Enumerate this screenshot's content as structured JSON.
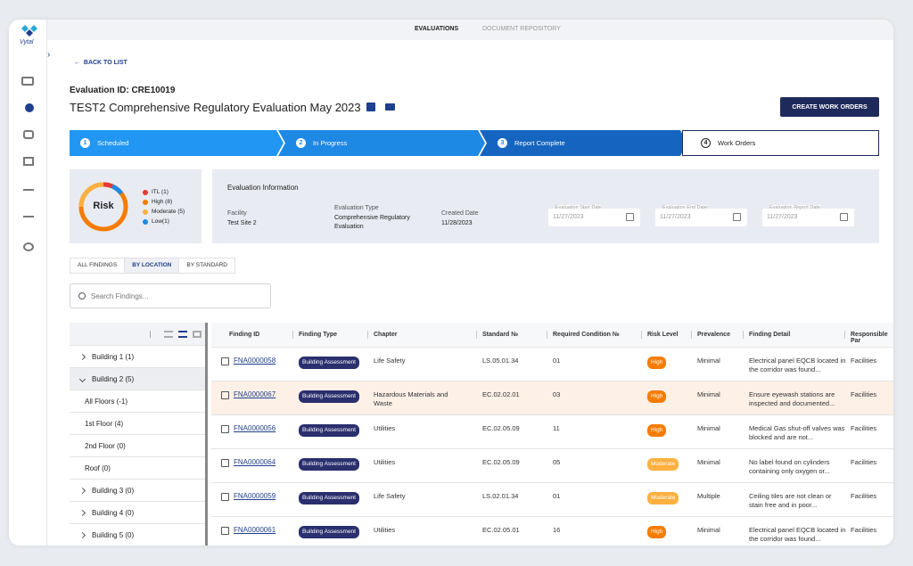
{
  "logo": "Vytal",
  "tabs": [
    "EVALUATIONS",
    "DOCUMENT REPOSITORY"
  ],
  "back": "BACK TO LIST",
  "evaluation_id": "Evaluation ID: CRE10019",
  "title": "TEST2 Comprehensive Regulatory Evaluation May 2023",
  "button": "CREATE WORK ORDERS",
  "steps": [
    {
      "number": 1,
      "label": "Scheduled"
    },
    {
      "number": 2,
      "label": "In Progress"
    },
    {
      "number": 3,
      "label": "Report Complete"
    },
    {
      "number": 4,
      "label": "Work Orders"
    }
  ],
  "risk": {
    "label": "Risk",
    "legend": [
      "ITL (1)",
      "High (8)",
      "Moderate (5)",
      "Low(1)"
    ]
  },
  "info": {
    "heading": "Evaluation Information",
    "fields": [
      {
        "label": "Facility",
        "value": "Test Site 2"
      },
      {
        "label": "Evaluation Type",
        "value": "Comprehensive Regulatory Evaluation"
      },
      {
        "label": "Created Date",
        "value": "11/28/2023"
      }
    ],
    "dates": [
      {
        "label": "Evaluation Start Date",
        "value": "11/27/2023"
      },
      {
        "label": "Evaluation End Date",
        "value": "11/27/2023"
      },
      {
        "label": "Evaluation Report Date",
        "value": "11/27/2023"
      }
    ]
  },
  "view_tabs": [
    "ALL FINDINGS",
    "BY LOCATION",
    "BY STANDARD"
  ],
  "search": "Search Findings...",
  "tree": [
    "Building 1  (1)",
    "Building 2 (5)",
    "All Floors (-1)",
    "1st Floor (4)",
    "2nd Floor (0)",
    "Roof (0)",
    "Building 3 (0)",
    "Building 4 (0)",
    "Building 5 (0)"
  ],
  "table": {
    "columns": [
      "Finding ID",
      "Finding Type",
      "Chapter",
      "Standard №",
      "Required Condition №",
      "Risk Level",
      "Prevalence",
      "Finding Detail",
      "Responsible Par"
    ],
    "rows": [
      [
        "FNA0000058",
        "Building Assessment",
        "Life Safety",
        "LS.05.01.34",
        "01",
        "High",
        "Minimal",
        "Electrical panel EQCB located in the corridor was found...",
        "Facilities"
      ],
      [
        "FNA0000067",
        "Building Assessment",
        "Hazardous Materials and Waste",
        "EC.02.02.01",
        "03",
        "High",
        "Minimal",
        "Ensure eyewash stations are inspected and documented...",
        "Facilities"
      ],
      [
        "FNA0000056",
        "Building Assessment",
        "Utilities",
        "EC.02.05.09",
        "11",
        "High",
        "Minimal",
        "Medical Gas shut-off valves was blocked and are not...",
        "Facilities"
      ],
      [
        "FNA0000064",
        "Building Assessment",
        "Utilities",
        "EC.02.05.09",
        "05",
        "Moderate",
        "Minimal",
        "No label found on cylinders containing only oxygen or...",
        "Facilities"
      ],
      [
        "FNA0000059",
        "Building Assessment",
        "Life Safety",
        "LS.02.01.34",
        "01",
        "Moderate",
        "Multiple",
        "Ceiling tiles are not clean or stain free and in poor...",
        "Facilities"
      ],
      [
        "FNA0000061",
        "Building Assessment",
        "Utilities",
        "EC.02.05.01",
        "16",
        "High",
        "Minimal",
        "Electrical panel EQCB located in the corridor was found...",
        "Facilities"
      ]
    ]
  }
}
